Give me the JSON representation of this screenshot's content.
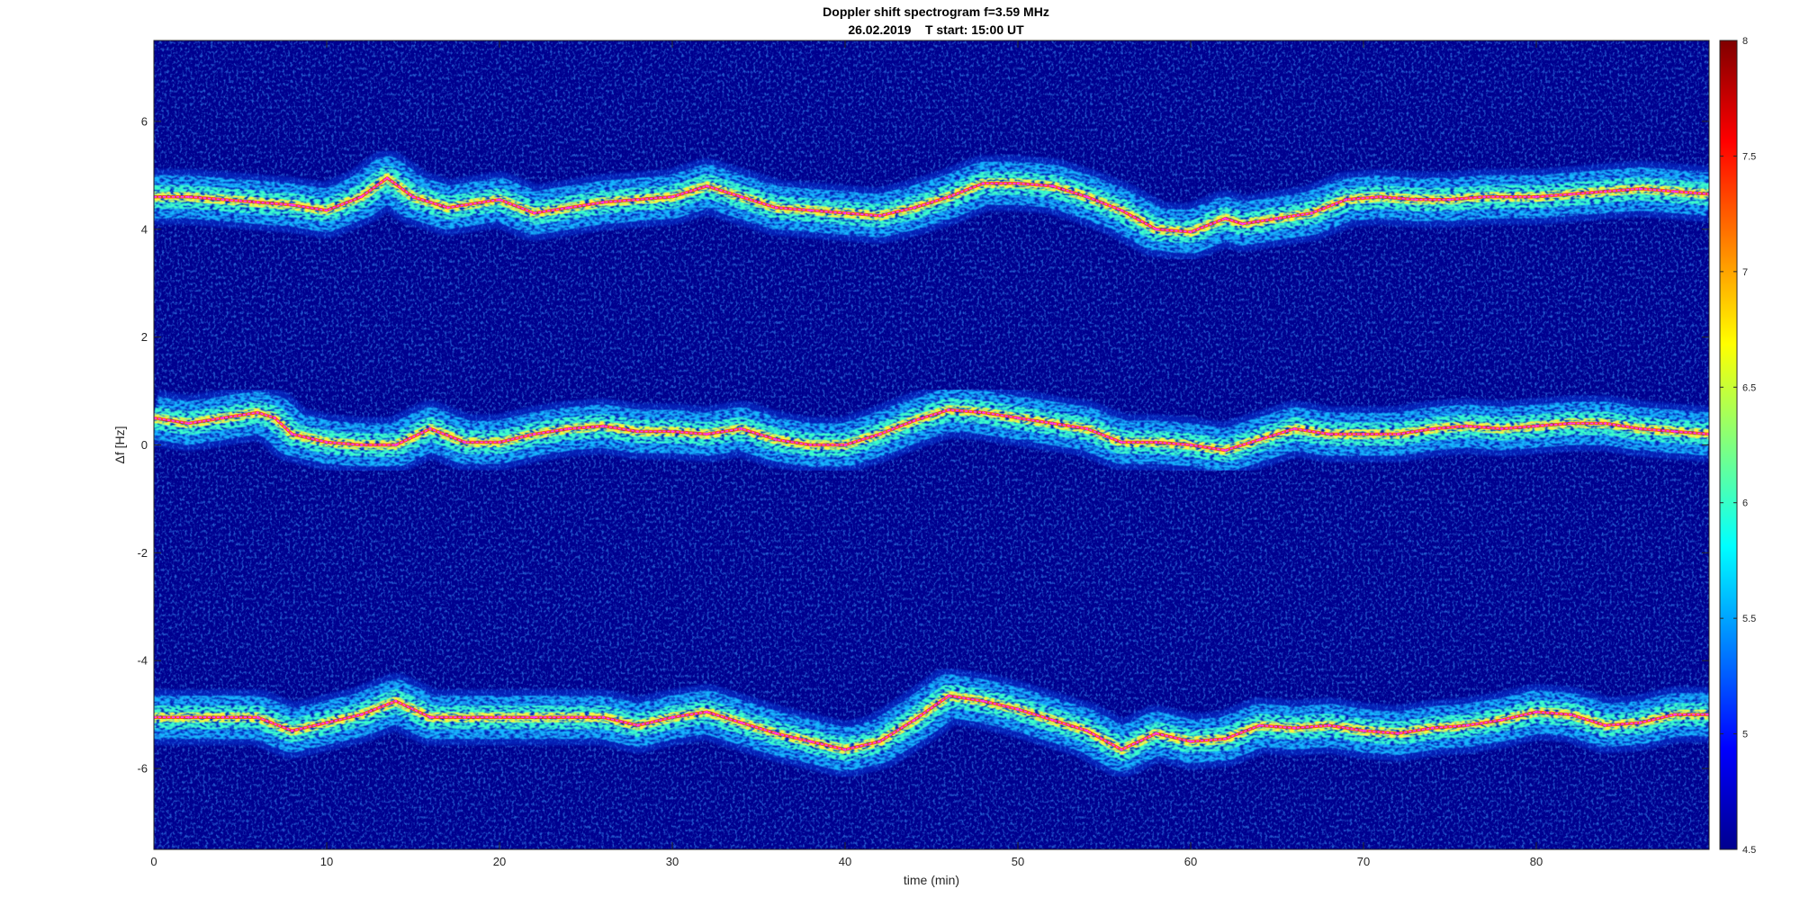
{
  "chart_data": {
    "type": "heatmap",
    "title": "Doppler shift spectrogram f=3.59 MHz",
    "subtitle": "26.02.2019    T start: 15:00 UT",
    "xlabel": "time (min)",
    "ylabel": "Δf [Hz]",
    "xlim": [
      0,
      90
    ],
    "ylim": [
      -7.5,
      7.5
    ],
    "x_ticks": [
      0,
      10,
      20,
      30,
      40,
      50,
      60,
      70,
      80
    ],
    "y_ticks": [
      -6,
      -4,
      -2,
      0,
      2,
      4,
      6
    ],
    "colormap": "jet",
    "colorbar": {
      "range": [
        4.5,
        8
      ],
      "ticks": [
        4.5,
        5,
        5.5,
        6,
        6.5,
        7,
        7.5,
        8
      ]
    },
    "grid": false,
    "background_color": "#00008f",
    "trace_color": "#ff33ff",
    "secondary_trace_color": "#000000",
    "series": [
      {
        "x": [
          0,
          2,
          4,
          6,
          8,
          10,
          12,
          13.5,
          15,
          17,
          20,
          22,
          24,
          26,
          28,
          30,
          32,
          34,
          36,
          38,
          40,
          42,
          44,
          46,
          48,
          50,
          52,
          54,
          56,
          58,
          60,
          62,
          63,
          65,
          67,
          69,
          71,
          73,
          75,
          77,
          80,
          82,
          84,
          86,
          88,
          90
        ],
        "values": [
          4.6,
          4.6,
          4.55,
          4.5,
          4.45,
          4.35,
          4.6,
          4.95,
          4.6,
          4.4,
          4.55,
          4.3,
          4.4,
          4.5,
          4.55,
          4.6,
          4.8,
          4.6,
          4.4,
          4.35,
          4.3,
          4.25,
          4.4,
          4.6,
          4.85,
          4.85,
          4.8,
          4.6,
          4.35,
          4.0,
          3.95,
          4.2,
          4.1,
          4.2,
          4.3,
          4.55,
          4.6,
          4.55,
          4.55,
          4.6,
          4.6,
          4.65,
          4.7,
          4.75,
          4.7,
          4.65
        ]
      },
      {
        "x": [
          0,
          2,
          4,
          6,
          7,
          8,
          10,
          12,
          14,
          16,
          18,
          20,
          22,
          24,
          26,
          28,
          30,
          32,
          34,
          36,
          38,
          40,
          42,
          44,
          46,
          48,
          50,
          52,
          54,
          56,
          58,
          60,
          62,
          64,
          66,
          68,
          70,
          72,
          74,
          76,
          78,
          80,
          82,
          84,
          86,
          88,
          90
        ],
        "values": [
          0.5,
          0.4,
          0.5,
          0.6,
          0.5,
          0.2,
          0.05,
          0.0,
          0.0,
          0.3,
          0.05,
          0.05,
          0.2,
          0.3,
          0.35,
          0.25,
          0.25,
          0.2,
          0.3,
          0.1,
          0.0,
          0.0,
          0.2,
          0.45,
          0.65,
          0.6,
          0.5,
          0.4,
          0.3,
          0.05,
          0.05,
          0.0,
          -0.1,
          0.1,
          0.3,
          0.2,
          0.2,
          0.2,
          0.3,
          0.35,
          0.3,
          0.35,
          0.4,
          0.4,
          0.3,
          0.25,
          0.2
        ]
      },
      {
        "x": [
          0,
          2,
          4,
          6,
          8,
          10,
          12,
          14,
          16,
          18,
          20,
          22,
          24,
          26,
          28,
          30,
          32,
          34,
          36,
          38,
          40,
          42,
          44,
          46,
          48,
          50,
          52,
          54,
          56,
          58,
          60,
          62,
          64,
          66,
          68,
          70,
          72,
          74,
          76,
          78,
          80,
          82,
          84,
          86,
          88,
          90
        ],
        "values": [
          -5.05,
          -5.05,
          -5.05,
          -5.05,
          -5.3,
          -5.15,
          -5.0,
          -4.75,
          -5.05,
          -5.05,
          -5.05,
          -5.05,
          -5.05,
          -5.05,
          -5.2,
          -5.05,
          -4.95,
          -5.15,
          -5.35,
          -5.5,
          -5.65,
          -5.5,
          -5.1,
          -4.65,
          -4.75,
          -4.9,
          -5.1,
          -5.3,
          -5.65,
          -5.35,
          -5.5,
          -5.45,
          -5.2,
          -5.25,
          -5.2,
          -5.3,
          -5.35,
          -5.25,
          -5.2,
          -5.1,
          -4.95,
          -5.0,
          -5.2,
          -5.15,
          -5.0,
          -5.0
        ]
      }
    ]
  }
}
